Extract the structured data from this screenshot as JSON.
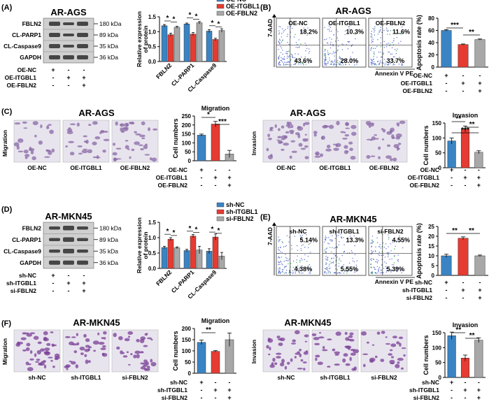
{
  "colors": {
    "blue": "#3a84c4",
    "red": "#e53b32",
    "gray": "#a8a8a8",
    "band": "#2e2e2e",
    "membrane": "#cfcfcf",
    "dot": "#5a6fd0",
    "stain_ags": "#8a6aa6",
    "stain_mkn": "#7a3f96"
  },
  "icons": {
    "significance": "asterisk-marker",
    "error": "error-bar"
  },
  "panels": {
    "A": {
      "label": "(A)",
      "title": "AR-AGS",
      "proteins": [
        "FBLN2",
        "CL-PARP1",
        "CL-Caspase9",
        "GAPDH"
      ],
      "sizes": [
        "180 kDa",
        "89 kDa",
        "35 kDa",
        "36 kDa"
      ],
      "groups": [
        "OE-NC",
        "OE-ITGBL1",
        "OE-FBLN2"
      ],
      "signs": [
        [
          "+",
          "-",
          "-"
        ],
        [
          "-",
          "+",
          "+"
        ],
        [
          "-",
          "-",
          "+"
        ]
      ],
      "bar": {
        "type": "bar",
        "ylabel_1": "Relative expression",
        "ylabel_2": "of protein",
        "ylim": [
          0,
          1.5
        ],
        "ticks": [
          "0.0",
          "0.5",
          "1.0",
          "1.5"
        ],
        "categories": [
          "FBLN2",
          "CL-PARP1",
          "CL-Caspase9"
        ],
        "series": [
          {
            "name": "OE-NC",
            "values": [
              1.2,
              1.26,
              1.02
            ]
          },
          {
            "name": "OE-ITGBL1",
            "values": [
              0.9,
              0.92,
              0.74
            ]
          },
          {
            "name": "OE-FBLN2",
            "values": [
              1.15,
              1.3,
              1.04
            ]
          }
        ],
        "errors": [
          [
            0.04,
            0.03,
            0.05
          ],
          [
            0.05,
            0.05,
            0.04
          ],
          [
            0.03,
            0.04,
            0.06
          ]
        ],
        "stars": [
          "*",
          "*",
          "*",
          "*",
          "*",
          "*"
        ]
      }
    },
    "B": {
      "label": "(B)",
      "title": "AR-AGS",
      "plots": [
        {
          "name": "OE-NC",
          "ul": "",
          "ur": "18.2%",
          "ll": "43.6%",
          "lr": ""
        },
        {
          "name": "OE-ITGBL1",
          "ul": "",
          "ur": "10.3%",
          "ll": "28.0%",
          "lr": ""
        },
        {
          "name": "OE-FBLN2",
          "ul": "",
          "ur": "11.6%",
          "ll": "33.7%",
          "lr": ""
        }
      ],
      "yaxis": "7-AAD",
      "xaxis": "Annexin V PE",
      "bar": {
        "type": "bar",
        "ylabel": "Apoptosis rate (%)",
        "ylim": [
          0,
          80
        ],
        "ticks": [
          "0",
          "20",
          "40",
          "60",
          "80"
        ],
        "values": [
          60,
          37,
          45
        ],
        "errors": [
          1.2,
          0.8,
          1.0
        ],
        "stars": [
          "***",
          "**"
        ]
      },
      "groups": [
        "OE-NC",
        "OE-ITGBL1",
        "OE-FBLN2"
      ],
      "signs": [
        [
          "+",
          "-",
          "-"
        ],
        [
          "-",
          "+",
          "+"
        ],
        [
          "-",
          "-",
          "+"
        ]
      ]
    },
    "C": {
      "label": "(C)",
      "mig_side": "Migration",
      "inv_side": "Invasion",
      "title_left": "AR-AGS",
      "title_right": "AR-AGS",
      "images": [
        "OE-NC",
        "OE-ITGBL1",
        "OE-FBLN2"
      ],
      "mig_bar": {
        "type": "bar",
        "title": "Migration",
        "ylabel": "Cell numbers",
        "ylim": [
          0,
          250
        ],
        "ticks": [
          "0",
          "50",
          "100",
          "150",
          "200",
          "250"
        ],
        "values": [
          143,
          205,
          38
        ],
        "errors": [
          6,
          15,
          20
        ],
        "stars": [
          "*",
          "***"
        ]
      },
      "inv_bar": {
        "type": "bar",
        "title": "Invasion",
        "ylabel": "Cell numbers",
        "ylim": [
          0,
          150
        ],
        "ticks": [
          "0",
          "50",
          "100",
          "150"
        ],
        "values": [
          90,
          130,
          52
        ],
        "errors": [
          10,
          10,
          5
        ],
        "stars": [
          "**",
          "**",
          "***"
        ]
      },
      "groups": [
        "OE-NC",
        "OE-ITGBL1",
        "OE-FBLN2"
      ],
      "signs": [
        [
          "+",
          "-",
          "-"
        ],
        [
          "-",
          "+",
          "+"
        ],
        [
          "-",
          "-",
          "+"
        ]
      ]
    },
    "D": {
      "label": "(D)",
      "title": "AR-MKN45",
      "proteins": [
        "FBLN2",
        "CL-PARP1",
        "CL-Caspase9",
        "GAPDH"
      ],
      "sizes": [
        "180 kDa",
        "89 kDa",
        "35 kDa",
        "36 kDa"
      ],
      "groups": [
        "sh-NC",
        "sh-ITGBL1",
        "si-FBLN2"
      ],
      "signs": [
        [
          "+",
          "-",
          "-"
        ],
        [
          "-",
          "+",
          "+"
        ],
        [
          "-",
          "-",
          "+"
        ]
      ],
      "bar": {
        "type": "bar",
        "ylabel_1": "Relative expression",
        "ylabel_2": "of protein",
        "ylim": [
          0,
          1.5
        ],
        "ticks": [
          "0.0",
          "0.5",
          "1.0",
          "1.5"
        ],
        "categories": [
          "FBLN2",
          "CL-PARP1",
          "CL-Caspase9"
        ],
        "series": [
          {
            "name": "sh-NC",
            "values": [
              0.68,
              0.58,
              0.56
            ]
          },
          {
            "name": "sh-ITGBL1",
            "values": [
              0.95,
              1.05,
              1.02
            ]
          },
          {
            "name": "si-FBLN2",
            "values": [
              0.67,
              0.6,
              0.4
            ]
          }
        ],
        "errors": [
          [
            0.04,
            0.04,
            0.08
          ],
          [
            0.05,
            0.05,
            0.1
          ],
          [
            0.03,
            0.12,
            0.12
          ]
        ],
        "stars": [
          "*",
          "*",
          "*",
          "*",
          "*",
          "*"
        ]
      }
    },
    "E": {
      "label": "(E)",
      "title": "AR-MKN45",
      "plots": [
        {
          "name": "sh-NC",
          "ul": "",
          "ur": "5.14%",
          "ll": "4.38%",
          "lr": ""
        },
        {
          "name": "sh-ITGBL1",
          "ul": "",
          "ur": "13.3%",
          "ll": "5.55%",
          "lr": ""
        },
        {
          "name": "si-FBLN2",
          "ul": "",
          "ur": "4.55%",
          "ll": "5.39%",
          "lr": ""
        }
      ],
      "yaxis": "7-AAD",
      "xaxis": "Annexin V PE",
      "bar": {
        "type": "bar",
        "ylabel": "Apoptosis rate (%)",
        "ylim": [
          0,
          25
        ],
        "ticks": [
          "0",
          "5",
          "10",
          "15",
          "20",
          "25"
        ],
        "values": [
          10,
          19,
          10
        ],
        "errors": [
          0.8,
          0.7,
          0.4
        ],
        "stars": [
          "**",
          "**"
        ]
      },
      "groups": [
        "sh-NC",
        "sh-ITGBL1",
        "si-FBLN2"
      ],
      "signs": [
        [
          "+",
          "-",
          "-"
        ],
        [
          "-",
          "+",
          "+"
        ],
        [
          "-",
          "-",
          "+"
        ]
      ]
    },
    "F": {
      "label": "(F)",
      "mig_side": "Migration",
      "inv_side": "Invasion",
      "title_left": "AR-MKN45",
      "title_right": "AR-MKN45",
      "images": [
        "sh-NC",
        "sh-ITGBL1",
        "si-FBLN2"
      ],
      "mig_bar": {
        "type": "bar",
        "title": "Migration",
        "ylabel": "Cell numbers",
        "ylim": [
          0,
          200
        ],
        "ticks": [
          "0",
          "50",
          "100",
          "150",
          "200"
        ],
        "values": [
          138,
          98,
          150
        ],
        "errors": [
          10,
          3,
          30
        ],
        "stars": [
          "**"
        ]
      },
      "inv_bar": {
        "type": "bar",
        "title": "Invasion",
        "ylabel": "Cell numbers",
        "ylim": [
          0,
          150
        ],
        "ticks": [
          "0",
          "50",
          "100",
          "150"
        ],
        "values": [
          140,
          65,
          125
        ],
        "errors": [
          12,
          10,
          8
        ],
        "stars": [
          "**",
          "**"
        ]
      },
      "groups": [
        "sh-NC",
        "sh-ITGBL1",
        "si-FBLN2"
      ],
      "signs": [
        [
          "+",
          "-",
          "-"
        ],
        [
          "-",
          "+",
          "+"
        ],
        [
          "-",
          "-",
          "+"
        ]
      ]
    }
  }
}
